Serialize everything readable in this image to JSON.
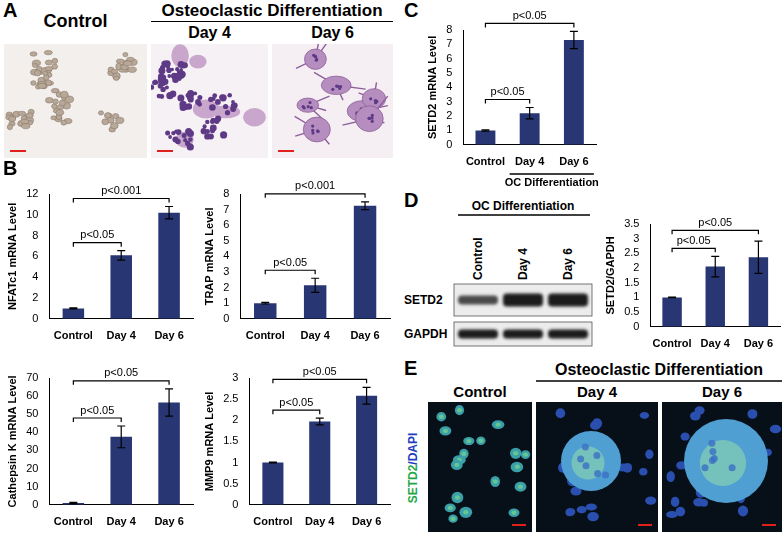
{
  "figure": {
    "panel_letters": [
      "A",
      "B",
      "C",
      "D",
      "E"
    ],
    "micrographs": {
      "header": "Osteoclastic Differentiation",
      "labels": [
        "Control",
        "Day 4",
        "Day 6"
      ]
    },
    "blot": {
      "header": "OC Differentiation",
      "lanes": [
        "Control",
        "Day 4",
        "Day 6"
      ],
      "bands": [
        "SETD2",
        "GAPDH"
      ]
    },
    "fluorescence": {
      "header": "Osteoclastic Differentiation",
      "labels": [
        "Control",
        "Day 4",
        "Day 6"
      ],
      "stain": [
        "SETD2",
        "/DAPI"
      ]
    }
  },
  "chart_data": [
    {
      "type": "bar",
      "y_label": "NFATc1 mRNA Level",
      "categories": [
        "Control",
        "Day 4",
        "Day 6"
      ],
      "values": [
        1,
        6.1,
        10.2
      ],
      "errors": [
        0.05,
        0.45,
        0.6
      ],
      "color": "#283673",
      "ylim": [
        0,
        12
      ],
      "yticks": [
        0,
        2,
        4,
        6,
        8,
        10,
        12
      ],
      "grid": false,
      "comparisons": [
        {
          "from": "Control",
          "to": "Day 4",
          "text": "p<0.05"
        },
        {
          "from": "Control",
          "to": "Day 6",
          "text": "p<0.001"
        }
      ]
    },
    {
      "type": "bar",
      "y_label": "TRAP mRNA Level",
      "categories": [
        "Control",
        "Day 4",
        "Day 6"
      ],
      "values": [
        1,
        2.15,
        7.25
      ],
      "errors": [
        0.05,
        0.45,
        0.25
      ],
      "color": "#283673",
      "ylim": [
        0,
        8
      ],
      "yticks": [
        0,
        1,
        2,
        3,
        4,
        5,
        6,
        7,
        8
      ],
      "grid": false,
      "comparisons": [
        {
          "from": "Control",
          "to": "Day 4",
          "text": "p<0.05"
        },
        {
          "from": "Control",
          "to": "Day 6",
          "text": "p<0.001"
        }
      ]
    },
    {
      "type": "bar",
      "y_label": "Cathepsin K mRNA Level",
      "categories": [
        "Control",
        "Day 4",
        "Day 6"
      ],
      "values": [
        1,
        37.5,
        56.5
      ],
      "errors": [
        0.3,
        6,
        7.5
      ],
      "color": "#283673",
      "ylim": [
        0,
        70
      ],
      "yticks": [
        0,
        10,
        20,
        30,
        40,
        50,
        60,
        70
      ],
      "grid": false,
      "comparisons": [
        {
          "from": "Control",
          "to": "Day 4",
          "text": "p<0.05"
        },
        {
          "from": "Control",
          "to": "Day 6",
          "text": "p<0.05"
        }
      ]
    },
    {
      "type": "bar",
      "y_label": "MMP9 mRNA Level",
      "categories": [
        "Control",
        "Day 4",
        "Day 6"
      ],
      "values": [
        1,
        1.97,
        2.58
      ],
      "errors": [
        0.01,
        0.08,
        0.2
      ],
      "color": "#283673",
      "ylim": [
        0,
        3
      ],
      "yticks": [
        0,
        0.5,
        1,
        1.5,
        2,
        2.5,
        3
      ],
      "grid": false,
      "comparisons": [
        {
          "from": "Control",
          "to": "Day 4",
          "text": "p<0.05"
        },
        {
          "from": "Control",
          "to": "Day 6",
          "text": "p<0.05"
        }
      ]
    },
    {
      "type": "bar",
      "y_label": "SETD2 mRNA Level",
      "categories": [
        "Control",
        "Day 4",
        "Day 6"
      ],
      "values": [
        1,
        2.2,
        7.3
      ],
      "errors": [
        0.05,
        0.4,
        0.6
      ],
      "color": "#283673",
      "ylim": [
        0,
        8
      ],
      "yticks": [
        0,
        1,
        2,
        3,
        4,
        5,
        6,
        7,
        8
      ],
      "grid": false,
      "comparisons": [
        {
          "from": "Control",
          "to": "Day 4",
          "text": "p<0.05"
        },
        {
          "from": "Control",
          "to": "Day 6",
          "text": "p<0.05"
        }
      ],
      "group_label": {
        "text": "OC Differentiation",
        "categories": [
          "Day 4",
          "Day 6"
        ]
      }
    },
    {
      "type": "bar",
      "y_label": "SETD2/GAPDH",
      "categories": [
        "Control",
        "Day 4",
        "Day 6"
      ],
      "values": [
        1,
        2.05,
        2.37
      ],
      "errors": [
        0.01,
        0.35,
        0.55
      ],
      "color": "#283673",
      "ylim": [
        0,
        3.5
      ],
      "yticks": [
        0,
        0.5,
        1,
        1.5,
        2,
        2.5,
        3,
        3.5
      ],
      "grid": false,
      "comparisons": [
        {
          "from": "Control",
          "to": "Day 4",
          "text": "p<0.05"
        },
        {
          "from": "Control",
          "to": "Day 6",
          "text": "p<0.05"
        }
      ]
    }
  ]
}
